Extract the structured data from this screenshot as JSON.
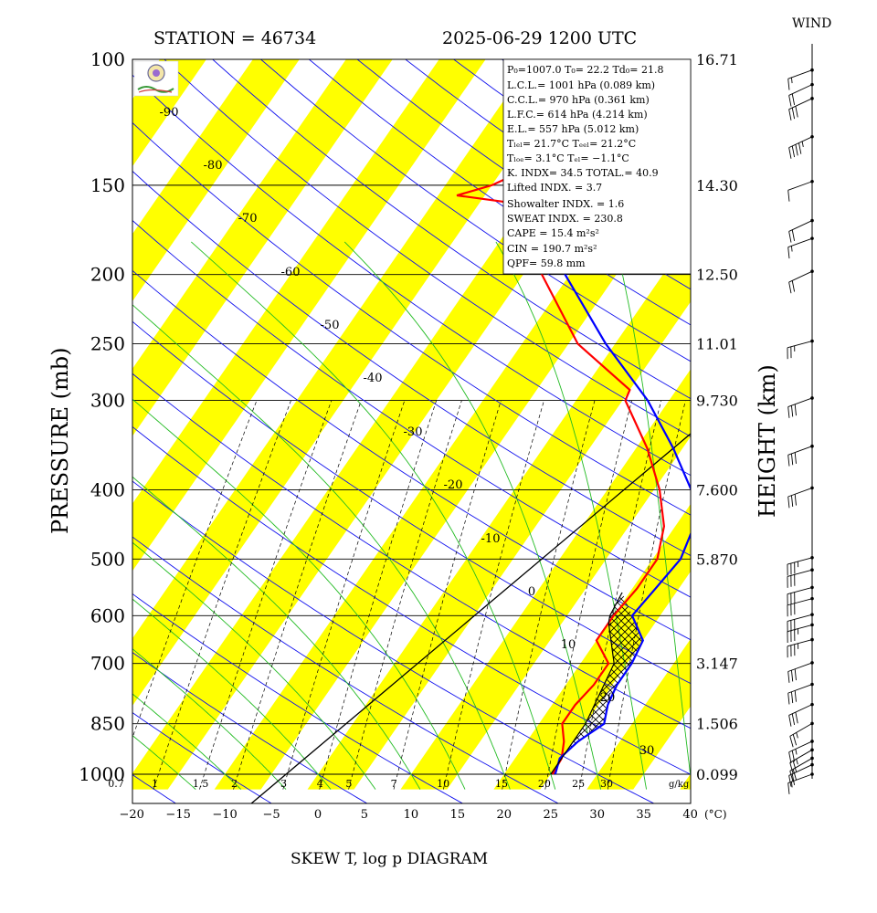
{
  "header": {
    "station": "STATION = 46734",
    "datetime": "2025-06-29 1200 UTC",
    "wind_label": "WIND"
  },
  "titles": {
    "bottom": "SKEW T, log p DIAGRAM",
    "left": "PRESSURE (mb)",
    "right": "HEIGHT (km)",
    "temp_unit": "(°C)",
    "mixing_unit": "g/kg"
  },
  "info": {
    "l1": "P₀=1007.0 T₀= 22.2 Td₀= 21.8",
    "l2": "L.C.L.= 1001 hPa (0.089 km)",
    "l3": "C.C.L.= 970 hPa (0.361 km)",
    "l4": "L.F.C.= 614 hPa (4.214 km)",
    "l5": "E.L.= 557 hPa (5.012 km)",
    "l6": "Tₗₑₗ= 21.7°C Tₑₑₗ= 21.2°C",
    "l7": "Tₗₒₑ= 3.1°C Tₑₗ= −1.1°C",
    "l8": "K. INDX= 34.5 TOTAL.= 40.9",
    "l9": "Lifted INDX. = 3.7",
    "l10": "Showalter INDX. = 1.6",
    "l11": "SWEAT INDX. = 230.8",
    "l12": "CAPE = 15.4 m²s²",
    "l13": "CIN = 190.7 m²s²",
    "l14": "QPF= 59.8 mm"
  },
  "chart_data": {
    "type": "line",
    "x_axis": {
      "label": "(°C)",
      "range": [
        -20,
        40
      ],
      "ticks": [
        -20,
        -15,
        -10,
        -5,
        0,
        5,
        10,
        15,
        20,
        25,
        30,
        35,
        40
      ]
    },
    "y_axis": {
      "label": "PRESSURE (mb)",
      "scale": "log",
      "range": [
        1000,
        100
      ],
      "ticks": [
        1000,
        850,
        700,
        600,
        500,
        400,
        300,
        250,
        200,
        150,
        100
      ]
    },
    "height_labels": [
      {
        "p": 100,
        "label": "16.71"
      },
      {
        "p": 150,
        "label": "14.30"
      },
      {
        "p": 200,
        "label": "12.50"
      },
      {
        "p": 250,
        "label": "11.01"
      },
      {
        "p": 300,
        "label": "9.730"
      },
      {
        "p": 400,
        "label": "7.600"
      },
      {
        "p": 500,
        "label": "5.870"
      },
      {
        "p": 700,
        "label": "3.147"
      },
      {
        "p": 850,
        "label": "1.506"
      },
      {
        "p": 1000,
        "label": "0.099"
      }
    ],
    "isotherm_labels": [
      -90,
      -80,
      -70,
      -60,
      -50,
      -40,
      -30,
      -20,
      -10,
      0,
      10,
      20,
      30
    ],
    "mixing_ratio_labels": [
      "0.7",
      "1",
      "1.5",
      "2",
      "3",
      "4",
      "5",
      "7",
      "10",
      "15",
      "20",
      "25",
      "30"
    ],
    "series": [
      {
        "role": "temperature",
        "color": "#ff0000",
        "points": [
          [
            1000,
            25.2
          ],
          [
            950,
            25.0
          ],
          [
            900,
            24.0
          ],
          [
            850,
            22.5
          ],
          [
            800,
            22.5
          ],
          [
            750,
            23.0
          ],
          [
            700,
            23.0
          ],
          [
            650,
            20.0
          ],
          [
            600,
            20.0
          ],
          [
            550,
            20.5
          ],
          [
            500,
            20.5
          ],
          [
            450,
            18.8
          ],
          [
            400,
            15.6
          ],
          [
            350,
            11.2
          ],
          [
            300,
            5.3
          ],
          [
            290,
            5.0
          ],
          [
            250,
            -4.0
          ],
          [
            200,
            -13.0
          ],
          [
            195,
            -14.0
          ],
          [
            180,
            -16.0
          ],
          [
            165,
            -19.0
          ],
          [
            160,
            -19.5
          ],
          [
            155,
            -28.0
          ],
          [
            150,
            -25.0
          ],
          [
            147,
            -24.0
          ],
          [
            140,
            -21.0
          ],
          [
            125,
            -20.5
          ],
          [
            110,
            -17.0
          ],
          [
            100,
            -13.5
          ]
        ]
      },
      {
        "role": "dewpoint",
        "color": "#0000ff",
        "points": [
          [
            1000,
            25.5
          ],
          [
            950,
            24.8
          ],
          [
            900,
            25.5
          ],
          [
            850,
            27.0
          ],
          [
            800,
            26.0
          ],
          [
            750,
            25.5
          ],
          [
            700,
            25.5
          ],
          [
            650,
            25.0
          ],
          [
            600,
            22.0
          ],
          [
            550,
            22.5
          ],
          [
            500,
            23.0
          ],
          [
            450,
            22.0
          ],
          [
            400,
            19.0
          ],
          [
            350,
            14.0
          ],
          [
            300,
            7.7
          ],
          [
            250,
            -1.0
          ],
          [
            200,
            -10.5
          ],
          [
            170,
            -15.0
          ],
          [
            160,
            -16.0
          ],
          [
            150,
            -15.0
          ],
          [
            140,
            -13.0
          ],
          [
            120,
            -6.5
          ],
          [
            110,
            -6.0
          ],
          [
            100,
            -1.0
          ]
        ]
      },
      {
        "role": "parcel",
        "color": "#000000",
        "points": [
          [
            1000,
            25.0
          ],
          [
            850,
            25.0
          ],
          [
            700,
            23.6
          ],
          [
            614,
            20.0
          ],
          [
            600,
            19.6
          ],
          [
            557,
            19.2
          ]
        ]
      }
    ],
    "wind_barbs": [
      {
        "p": 1000,
        "dir": 250,
        "kt": 15
      },
      {
        "p": 970,
        "dir": 245,
        "kt": 20
      },
      {
        "p": 950,
        "dir": 240,
        "kt": 20
      },
      {
        "p": 925,
        "dir": 240,
        "kt": 25
      },
      {
        "p": 900,
        "dir": 245,
        "kt": 25
      },
      {
        "p": 850,
        "dir": 240,
        "kt": 25
      },
      {
        "p": 800,
        "dir": 245,
        "kt": 30
      },
      {
        "p": 750,
        "dir": 250,
        "kt": 30
      },
      {
        "p": 700,
        "dir": 250,
        "kt": 30
      },
      {
        "p": 650,
        "dir": 255,
        "kt": 35
      },
      {
        "p": 620,
        "dir": 255,
        "kt": 35
      },
      {
        "p": 600,
        "dir": 255,
        "kt": 30
      },
      {
        "p": 570,
        "dir": 255,
        "kt": 30
      },
      {
        "p": 550,
        "dir": 255,
        "kt": 30
      },
      {
        "p": 520,
        "dir": 255,
        "kt": 30
      },
      {
        "p": 500,
        "dir": 255,
        "kt": 35
      },
      {
        "p": 400,
        "dir": 250,
        "kt": 30
      },
      {
        "p": 350,
        "dir": 250,
        "kt": 30
      },
      {
        "p": 300,
        "dir": 250,
        "kt": 30
      },
      {
        "p": 250,
        "dir": 255,
        "kt": 25
      },
      {
        "p": 200,
        "dir": 245,
        "kt": 20
      },
      {
        "p": 180,
        "dir": 250,
        "kt": 15
      },
      {
        "p": 170,
        "dir": 245,
        "kt": 20
      },
      {
        "p": 150,
        "dir": 250,
        "kt": 10
      },
      {
        "p": 130,
        "dir": 245,
        "kt": 45
      },
      {
        "p": 115,
        "dir": 245,
        "kt": 30
      },
      {
        "p": 110,
        "dir": 245,
        "kt": 20
      },
      {
        "p": 105,
        "dir": 250,
        "kt": 15
      }
    ]
  }
}
